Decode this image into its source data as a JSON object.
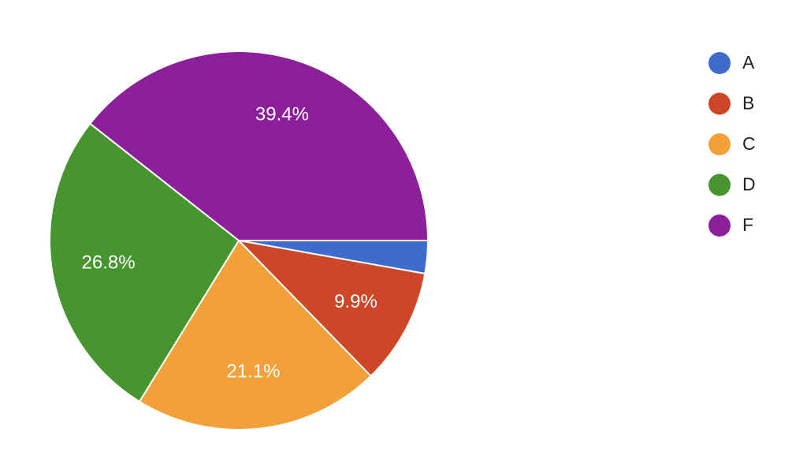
{
  "chart_data": {
    "type": "pie",
    "categories": [
      "A",
      "B",
      "C",
      "D",
      "F"
    ],
    "values": [
      2.8,
      9.9,
      21.1,
      26.8,
      39.4
    ],
    "value_labels": [
      null,
      "9.9%",
      "21.1%",
      "26.8%",
      "39.4%"
    ],
    "colors": [
      "#3d6ccd",
      "#cc4627",
      "#f1a03a",
      "#46952f",
      "#8b209a"
    ],
    "legend": "right"
  }
}
